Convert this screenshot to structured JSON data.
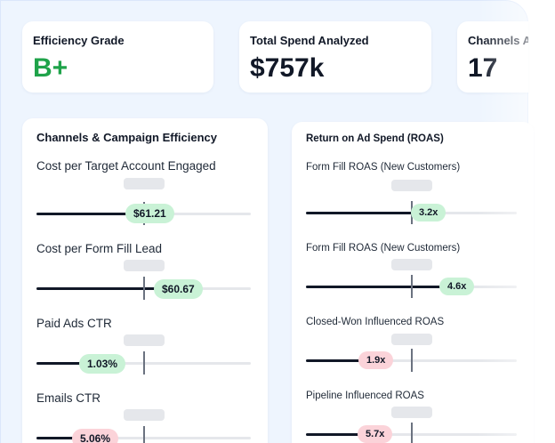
{
  "summary_cards": [
    {
      "label": "Efficiency Grade",
      "value": "B+"
    },
    {
      "label": "Total Spend Analyzed",
      "value": "$757k"
    },
    {
      "label": "Channels Analyzed",
      "value": "17"
    }
  ],
  "efficiency_section": {
    "title": "Channels & Campaign Efficiency",
    "metrics": [
      {
        "label": "Cost per Target Account Engaged",
        "value": "$61.21",
        "fill_fraction": 0.47,
        "status": "good"
      },
      {
        "label": "Cost per Form Fill Lead",
        "value": "$60.67",
        "fill_fraction": 0.65,
        "status": "good"
      },
      {
        "label": "Paid Ads CTR",
        "value": "1.03%",
        "fill_fraction": 0.32,
        "status": "good"
      },
      {
        "label": "Emails CTR",
        "value": "5.06%",
        "fill_fraction": 0.28,
        "status": "bad"
      }
    ]
  },
  "roas_section": {
    "title": "Return on Ad Spend (ROAS)",
    "metrics": [
      {
        "label": "Form Fill ROAS (New Customers)",
        "value": "3.2x",
        "fill_fraction": 0.53,
        "status": "good"
      },
      {
        "label": "Form Fill ROAS (New Customers)",
        "value": "4.6x",
        "fill_fraction": 0.72,
        "status": "good"
      },
      {
        "label": "Closed-Won Influenced ROAS",
        "value": "1.9x",
        "fill_fraction": 0.3,
        "status": "bad"
      },
      {
        "label": "Pipeline Influenced ROAS",
        "value": "5.7x",
        "fill_fraction": 0.3,
        "status": "bad"
      }
    ]
  },
  "colors": {
    "good_pill": "#c9f2d6",
    "bad_pill": "#fbd3d9",
    "grade": "#1fa34a",
    "bar_fill": "#111827",
    "track": "#e5e7eb",
    "panel_bg": "#eef5fe"
  }
}
